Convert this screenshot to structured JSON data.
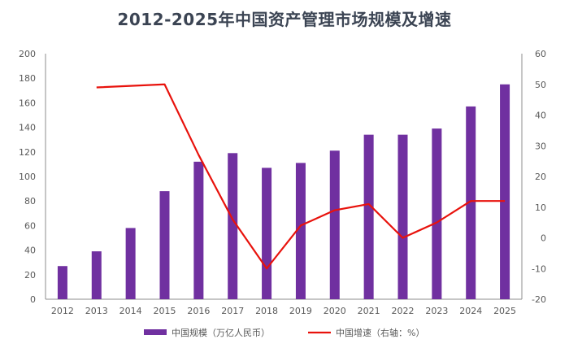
{
  "chart_data": {
    "type": "bar",
    "title": "2012-2025年中国资产管理市场规模及增速",
    "categories": [
      "2012",
      "2013",
      "2014",
      "2015",
      "2016",
      "2017",
      "2018",
      "2019",
      "2020",
      "2021",
      "2022",
      "2023",
      "2024",
      "2025"
    ],
    "series": [
      {
        "name": "中国规模（万亿人民币）",
        "type": "bar",
        "axis": "left",
        "color": "#7030a0",
        "values": [
          27,
          39,
          58,
          88,
          112,
          119,
          107,
          111,
          121,
          134,
          134,
          139,
          157,
          175
        ]
      },
      {
        "name": "中国增速（右轴：%）",
        "type": "line",
        "axis": "right",
        "color": "#e8120c",
        "values": [
          null,
          49,
          null,
          50,
          27,
          6,
          -10,
          4,
          9,
          11,
          0,
          5,
          12,
          12
        ]
      }
    ],
    "y_left": {
      "min": 0,
      "max": 200,
      "ticks": [
        "0",
        "20",
        "40",
        "60",
        "80",
        "100",
        "120",
        "140",
        "160",
        "180",
        "200"
      ]
    },
    "y_right": {
      "min": -20,
      "max": 60,
      "ticks": [
        "-20",
        "-10",
        "0",
        "10",
        "20",
        "30",
        "40",
        "50",
        "60"
      ]
    },
    "grid": false,
    "legend_position": "bottom"
  }
}
